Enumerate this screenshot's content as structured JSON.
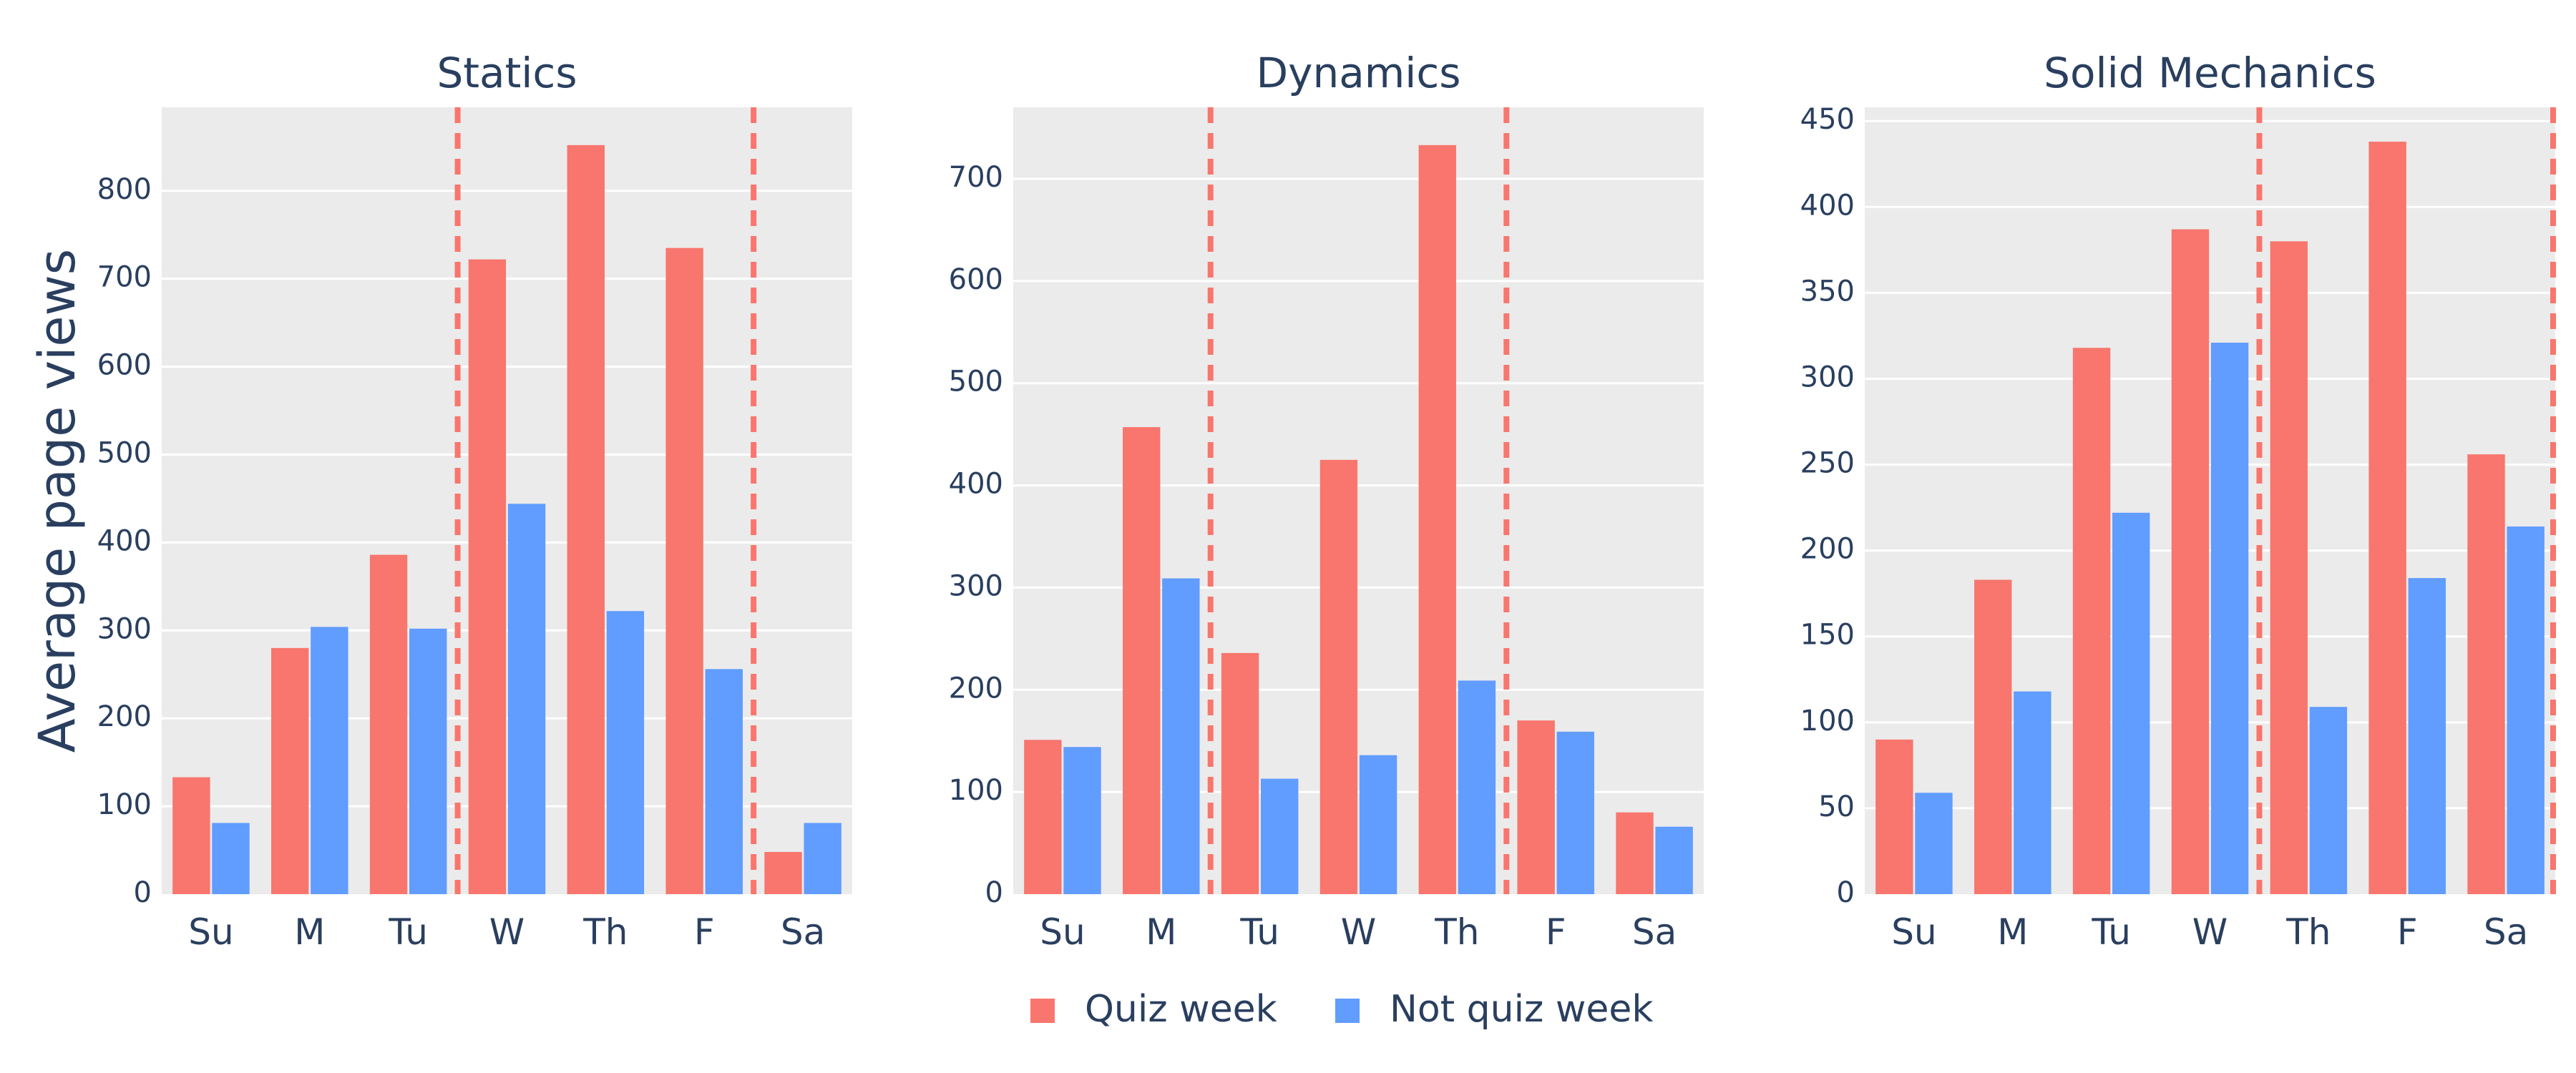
{
  "chart_data": {
    "type": "bar",
    "ylabel": "Average page views",
    "legend": {
      "placement": "bottom-center",
      "entries": [
        {
          "label": "Quiz week",
          "color": "#F8766D"
        },
        {
          "label": "Not quiz week",
          "color": "#619CFF"
        }
      ]
    },
    "colors": {
      "plot_bg": "#EBEBEB",
      "grid": "#FFFFFF",
      "text": "#2A3F5F",
      "reference_line": "#F8766D"
    },
    "grid": true,
    "panels": [
      {
        "title": "Statics",
        "categories": [
          "Su",
          "M",
          "Tu",
          "W",
          "Th",
          "F",
          "Sa"
        ],
        "series": [
          {
            "name": "Quiz week",
            "values": [
              133,
              280,
              386,
              722,
              852,
              735,
              48
            ]
          },
          {
            "name": "Not quiz week",
            "values": [
              81,
              304,
              302,
              444,
              322,
              256,
              81
            ]
          }
        ],
        "ylim": [
          0,
          895
        ],
        "yticks": [
          0,
          100,
          200,
          300,
          400,
          500,
          600,
          700,
          800
        ],
        "reference_lines_between": [
          [
            "Tu",
            "W"
          ],
          [
            "F",
            "Sa"
          ]
        ]
      },
      {
        "title": "Dynamics",
        "categories": [
          "Su",
          "M",
          "Tu",
          "W",
          "Th",
          "F",
          "Sa"
        ],
        "series": [
          {
            "name": "Quiz week",
            "values": [
              151,
              457,
              236,
              425,
              733,
              170,
              80
            ]
          },
          {
            "name": "Not quiz week",
            "values": [
              144,
              309,
              113,
              136,
              209,
              159,
              66
            ]
          }
        ],
        "ylim": [
          0,
          770
        ],
        "yticks": [
          0,
          100,
          200,
          300,
          400,
          500,
          600,
          700
        ],
        "reference_lines_between": [
          [
            "M",
            "Tu"
          ],
          [
            "Th",
            "F"
          ]
        ]
      },
      {
        "title": "Solid Mechanics",
        "categories": [
          "Su",
          "M",
          "Tu",
          "W",
          "Th",
          "F",
          "Sa"
        ],
        "series": [
          {
            "name": "Quiz week",
            "values": [
              90,
              183,
              318,
              387,
              380,
              438,
              256
            ]
          },
          {
            "name": "Not quiz week",
            "values": [
              59,
              118,
              222,
              321,
              109,
              184,
              214
            ]
          }
        ],
        "ylim": [
          0,
          458
        ],
        "yticks": [
          0,
          50,
          100,
          150,
          200,
          250,
          300,
          350,
          400,
          450
        ],
        "reference_lines_between": [
          [
            "W",
            "Th"
          ],
          [
            "Sa",
            "end"
          ]
        ]
      }
    ]
  }
}
